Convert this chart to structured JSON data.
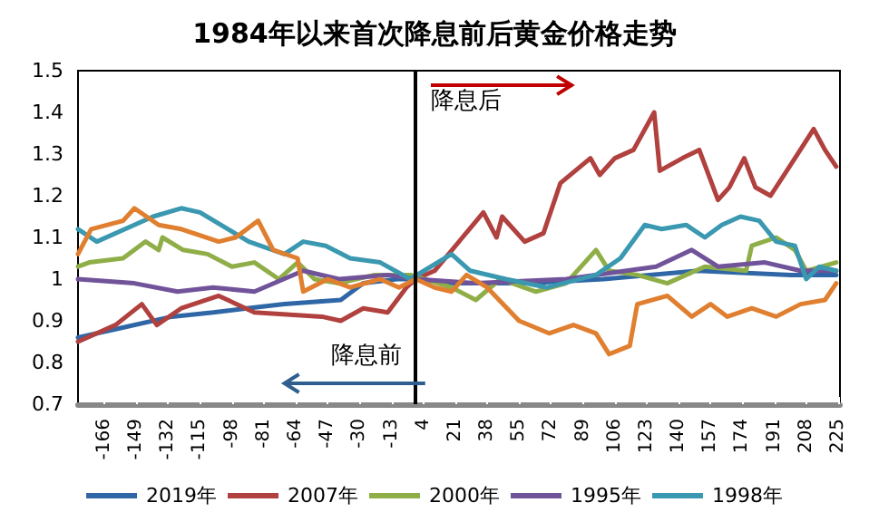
{
  "chart_data": {
    "type": "line",
    "title": "1984年以来首次降息前后黄金价格走势",
    "xlim": [
      -180,
      226
    ],
    "xticks": [
      -166,
      -149,
      -132,
      -115,
      -98,
      -81,
      -64,
      -47,
      -30,
      -13,
      4,
      21,
      38,
      55,
      72,
      89,
      106,
      123,
      140,
      157,
      174,
      191,
      208,
      225
    ],
    "ylim": [
      0.7,
      1.5
    ],
    "yticks": [
      0.7,
      0.8,
      0.9,
      1,
      1.1,
      1.2,
      1.3,
      1.4,
      1.5
    ],
    "grid": false,
    "legend": "bottom",
    "marker": "none",
    "line_style": "solid",
    "ref_lines": [
      {
        "axis": "x",
        "value": 0,
        "color": "#000000",
        "line_style": "solid"
      }
    ],
    "annotations": [
      "降息前",
      "降息后"
    ],
    "series": [
      {
        "name": "2019年",
        "color": "#2f67a6",
        "x": [
          -180,
          -160,
          -130,
          -108,
          -90,
          -70,
          -40,
          -28,
          -10,
          0,
          20,
          60,
          100,
          150,
          200,
          224
        ],
        "values": [
          0.86,
          0.88,
          0.91,
          0.92,
          0.93,
          0.94,
          0.95,
          0.99,
          1.0,
          1.0,
          0.99,
          0.99,
          1.0,
          1.02,
          1.01,
          1.01
        ]
      },
      {
        "name": "2007年",
        "color": "#b0413e",
        "x": [
          -180,
          -160,
          -146,
          -138,
          -125,
          -105,
          -86,
          -50,
          -40,
          -28,
          -15,
          -5,
          0,
          10,
          36,
          43,
          46,
          58,
          68,
          77,
          93,
          98,
          106,
          116,
          127,
          130,
          142,
          151,
          161,
          167,
          175,
          181,
          189,
          202,
          212,
          218,
          224
        ],
        "values": [
          0.85,
          0.89,
          0.94,
          0.89,
          0.93,
          0.96,
          0.92,
          0.91,
          0.9,
          0.93,
          0.92,
          0.98,
          1.0,
          1.02,
          1.16,
          1.1,
          1.15,
          1.09,
          1.11,
          1.23,
          1.29,
          1.25,
          1.29,
          1.31,
          1.4,
          1.26,
          1.29,
          1.31,
          1.19,
          1.22,
          1.29,
          1.22,
          1.2,
          1.29,
          1.36,
          1.31,
          1.27
        ]
      },
      {
        "name": "2000年",
        "color": "#8fae48",
        "x": [
          -180,
          -174,
          -156,
          -144,
          -137,
          -135,
          -124,
          -111,
          -98,
          -86,
          -73,
          -63,
          -54,
          -41,
          -22,
          -3,
          19,
          32,
          45,
          64,
          80,
          96,
          103,
          118,
          134,
          154,
          176,
          179,
          192,
          202,
          208,
          224
        ],
        "values": [
          1.03,
          1.04,
          1.05,
          1.09,
          1.07,
          1.1,
          1.07,
          1.06,
          1.03,
          1.04,
          1.0,
          1.04,
          1.0,
          0.99,
          1.01,
          1.01,
          0.98,
          0.95,
          1.0,
          0.97,
          0.99,
          1.07,
          1.02,
          1.01,
          0.99,
          1.03,
          1.02,
          1.08,
          1.1,
          1.07,
          1.02,
          1.04
        ]
      },
      {
        "name": "1995年",
        "color": "#71539a",
        "x": [
          -180,
          -150,
          -127,
          -108,
          -86,
          -60,
          -41,
          -15,
          0,
          32,
          80,
          128,
          147,
          161,
          186,
          205,
          224
        ],
        "values": [
          1.0,
          0.99,
          0.97,
          0.98,
          0.97,
          1.02,
          1.0,
          1.01,
          1.0,
          0.99,
          1.0,
          1.03,
          1.07,
          1.03,
          1.04,
          1.02,
          1.02
        ]
      },
      {
        "name": "1998年",
        "color": "#3a98b0",
        "x": [
          -180,
          -170,
          -140,
          -125,
          -115,
          -89,
          -70,
          -60,
          -48,
          -35,
          -19,
          -3,
          19,
          29,
          48,
          70,
          96,
          109,
          122,
          131,
          144,
          154,
          163,
          173,
          183,
          192,
          202,
          208,
          215,
          224
        ],
        "values": [
          1.12,
          1.09,
          1.15,
          1.17,
          1.16,
          1.09,
          1.06,
          1.09,
          1.08,
          1.05,
          1.04,
          1.0,
          1.06,
          1.02,
          1.0,
          0.98,
          1.01,
          1.05,
          1.13,
          1.12,
          1.13,
          1.1,
          1.13,
          1.15,
          1.14,
          1.09,
          1.08,
          1.0,
          1.03,
          1.02
        ]
      },
      {
        "color": "#e07f2f",
        "x": [
          -180,
          -173,
          -156,
          -150,
          -137,
          -125,
          -105,
          -96,
          -84,
          -76,
          -63,
          -60,
          -47,
          -35,
          -19,
          -9,
          0,
          10,
          19,
          27,
          38,
          55,
          71,
          84,
          96,
          103,
          114,
          118,
          134,
          147,
          157,
          166,
          179,
          192,
          205,
          218,
          224
        ],
        "values": [
          1.06,
          1.12,
          1.14,
          1.17,
          1.13,
          1.12,
          1.09,
          1.1,
          1.14,
          1.07,
          1.05,
          0.97,
          1.0,
          0.98,
          1.0,
          0.98,
          1.0,
          0.98,
          0.97,
          1.01,
          0.98,
          0.9,
          0.87,
          0.89,
          0.87,
          0.82,
          0.84,
          0.94,
          0.96,
          0.91,
          0.94,
          0.91,
          0.93,
          0.91,
          0.94,
          0.95,
          0.99
        ]
      }
    ]
  }
}
